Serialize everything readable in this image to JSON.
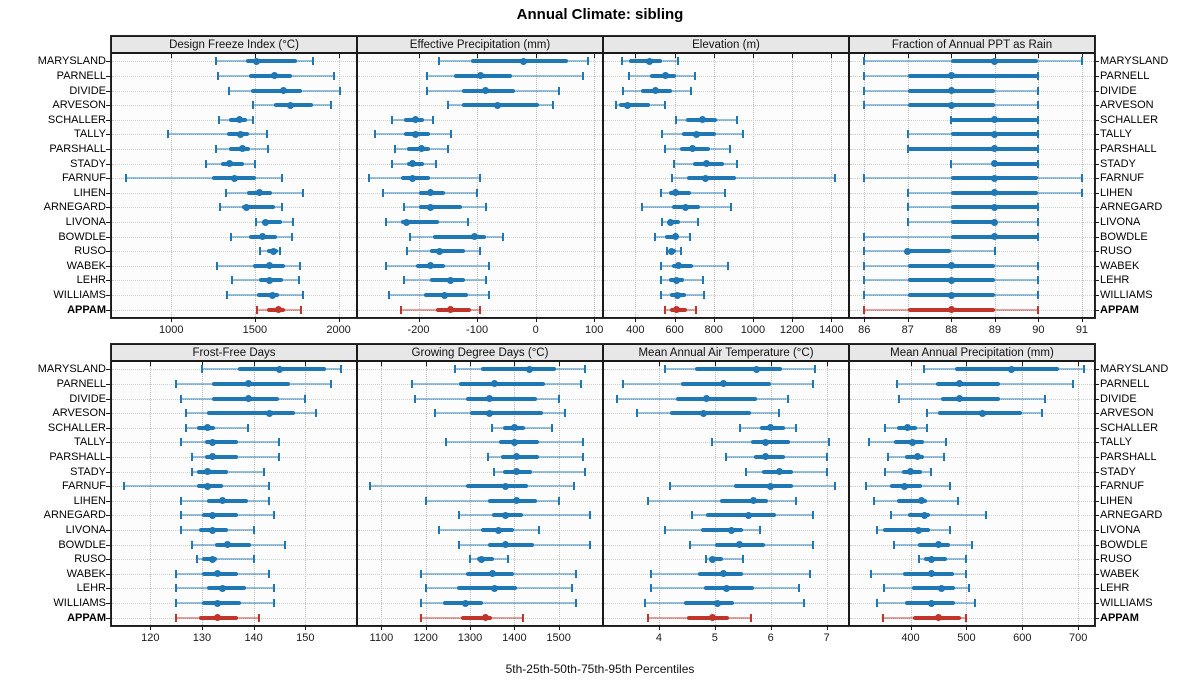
{
  "title": "Annual Climate: sibling",
  "footer": "5th-25th-50th-75th-95th Percentiles",
  "colors": {
    "series_blue": "#1F77B4",
    "series_blue_light": "rgba(31,119,180,0.45)",
    "highlight_red": "#C0352B",
    "highlight_red_light": "rgba(192,53,43,0.45)",
    "header_bg": "#E7E7E7",
    "grid": "#C8C8C8",
    "border": "#1a1a1a"
  },
  "chart_data": {
    "type": "scatter",
    "variant": "trellis dot plot with 5th-25th-50th-75th-95th percentile ranges, 2 rows x 4 columns of panels",
    "legend_position": "none",
    "grid": "dotted",
    "stations": [
      "MARYSLAND",
      "PARNELL",
      "DIVIDE",
      "ARVESON",
      "SCHALLER",
      "TALLY",
      "PARSHALL",
      "STADY",
      "FARNUF",
      "LIHEN",
      "ARNEGARD",
      "LIVONA",
      "BOWDLE",
      "RUSO",
      "WABEK",
      "LEHR",
      "WILLIAMS",
      "APPAM"
    ],
    "highlight_station": "APPAM",
    "percentile_order": [
      "p5",
      "p25",
      "p50",
      "p75",
      "p95"
    ],
    "panels": [
      {
        "title": "Design Freeze Index (°C)",
        "row": 0,
        "col": 0,
        "xlim": [
          640,
          2110
        ],
        "ticks": [
          1000,
          1500,
          2000
        ],
        "values": [
          [
            1265,
            1445,
            1510,
            1750,
            1850
          ],
          [
            1280,
            1465,
            1615,
            1720,
            1975
          ],
          [
            1345,
            1475,
            1670,
            1780,
            2010
          ],
          [
            1490,
            1615,
            1715,
            1850,
            1955
          ],
          [
            1285,
            1345,
            1405,
            1455,
            1490
          ],
          [
            980,
            1335,
            1415,
            1465,
            1570
          ],
          [
            1265,
            1345,
            1425,
            1470,
            1580
          ],
          [
            1210,
            1300,
            1350,
            1435,
            1500
          ],
          [
            730,
            1245,
            1380,
            1505,
            1660
          ],
          [
            1330,
            1455,
            1525,
            1600,
            1790
          ],
          [
            1290,
            1420,
            1450,
            1620,
            1660
          ],
          [
            1505,
            1545,
            1565,
            1660,
            1725
          ],
          [
            1355,
            1465,
            1545,
            1630,
            1720
          ],
          [
            1530,
            1570,
            1610,
            1635,
            1650
          ],
          [
            1275,
            1490,
            1590,
            1680,
            1770
          ],
          [
            1365,
            1525,
            1585,
            1665,
            1765
          ],
          [
            1335,
            1515,
            1605,
            1645,
            1785
          ],
          [
            1510,
            1570,
            1640,
            1680,
            1775
          ]
        ]
      },
      {
        "title": "Effective Precipitation (mm)",
        "row": 0,
        "col": 1,
        "xlim": [
          -305,
          115
        ],
        "ticks": [
          -200,
          -100,
          0,
          100
        ],
        "values": [
          [
            -165,
            -110,
            -20,
            55,
            90
          ],
          [
            -185,
            -140,
            -95,
            -40,
            80
          ],
          [
            -185,
            -125,
            -85,
            -35,
            40
          ],
          [
            -150,
            -125,
            -65,
            5,
            30
          ],
          [
            -245,
            -225,
            -205,
            -190,
            -175
          ],
          [
            -275,
            -225,
            -205,
            -180,
            -145
          ],
          [
            -240,
            -220,
            -195,
            -180,
            -150
          ],
          [
            -245,
            -220,
            -210,
            -190,
            -170
          ],
          [
            -285,
            -230,
            -210,
            -180,
            -95
          ],
          [
            -260,
            -200,
            -180,
            -155,
            -100
          ],
          [
            -225,
            -200,
            -180,
            -125,
            -85
          ],
          [
            -255,
            -230,
            -220,
            -165,
            -115
          ],
          [
            -215,
            -175,
            -105,
            -85,
            -55
          ],
          [
            -220,
            -180,
            -165,
            -120,
            -95
          ],
          [
            -255,
            -205,
            -180,
            -155,
            -80
          ],
          [
            -225,
            -180,
            -145,
            -120,
            -85
          ],
          [
            -250,
            -190,
            -155,
            -115,
            -80
          ],
          [
            -230,
            -170,
            -145,
            -110,
            -95
          ]
        ]
      },
      {
        "title": "Elevation (m)",
        "row": 0,
        "col": 2,
        "xlim": [
          235,
          1490
        ],
        "ticks": [
          400,
          600,
          800,
          1000,
          1200,
          1400
        ],
        "values": [
          [
            330,
            370,
            470,
            535,
            620
          ],
          [
            370,
            475,
            555,
            610,
            705
          ],
          [
            335,
            430,
            505,
            585,
            685
          ],
          [
            300,
            315,
            360,
            475,
            550
          ],
          [
            605,
            660,
            745,
            815,
            920
          ],
          [
            535,
            640,
            710,
            810,
            950
          ],
          [
            550,
            630,
            690,
            780,
            885
          ],
          [
            595,
            695,
            765,
            850,
            920
          ],
          [
            585,
            665,
            760,
            915,
            1420
          ],
          [
            530,
            570,
            605,
            685,
            855
          ],
          [
            435,
            585,
            655,
            730,
            890
          ],
          [
            535,
            570,
            580,
            630,
            720
          ],
          [
            500,
            550,
            605,
            620,
            680
          ],
          [
            560,
            570,
            585,
            610,
            635
          ],
          [
            530,
            585,
            620,
            695,
            875
          ],
          [
            530,
            570,
            610,
            650,
            745
          ],
          [
            530,
            575,
            615,
            660,
            750
          ],
          [
            550,
            575,
            610,
            665,
            710
          ]
        ]
      },
      {
        "title": "Fraction of Annual PPT as Rain",
        "row": 0,
        "col": 3,
        "xlim": [
          85.65,
          91.3
        ],
        "ticks": [
          86,
          87,
          88,
          89,
          90,
          91
        ],
        "values": [
          [
            86,
            88,
            89,
            90,
            91
          ],
          [
            86,
            87,
            88,
            90,
            90
          ],
          [
            86,
            87,
            88,
            89,
            90
          ],
          [
            86,
            87,
            88,
            89,
            90
          ],
          [
            88,
            88,
            89,
            90,
            90
          ],
          [
            87,
            88,
            89,
            90,
            90
          ],
          [
            87,
            87,
            89,
            90,
            90
          ],
          [
            88,
            89,
            89,
            90,
            90
          ],
          [
            86,
            88,
            89,
            90,
            91
          ],
          [
            87,
            88,
            89,
            90,
            91
          ],
          [
            87,
            88,
            89,
            90,
            90
          ],
          [
            87,
            88,
            89,
            89,
            90
          ],
          [
            86,
            88,
            89,
            90,
            90
          ],
          [
            86,
            87,
            87,
            88,
            89
          ],
          [
            86,
            87,
            88,
            89,
            90
          ],
          [
            86,
            87,
            88,
            89,
            90
          ],
          [
            86,
            87,
            88,
            89,
            90
          ],
          [
            86,
            87,
            88,
            89,
            90
          ]
        ]
      },
      {
        "title": "Frost-Free Days",
        "row": 1,
        "col": 0,
        "xlim": [
          112.4,
          160
        ],
        "ticks": [
          120,
          130,
          140,
          150
        ],
        "values": [
          [
            130,
            137,
            145,
            154,
            157
          ],
          [
            125,
            132,
            139,
            147,
            155
          ],
          [
            126,
            132,
            139,
            145,
            150
          ],
          [
            127,
            131,
            143,
            148,
            152
          ],
          [
            127,
            129,
            131,
            132.5,
            139
          ],
          [
            126,
            130.5,
            132,
            137,
            145
          ],
          [
            128,
            130.5,
            132,
            137,
            145
          ],
          [
            128,
            129,
            131,
            135,
            142
          ],
          [
            115,
            129,
            131,
            134,
            143
          ],
          [
            126,
            131,
            134,
            139,
            143
          ],
          [
            126,
            130,
            132,
            137,
            144
          ],
          [
            126,
            129.5,
            132,
            135,
            140
          ],
          [
            128,
            132.5,
            135,
            139.5,
            146
          ],
          [
            129,
            130,
            132,
            133,
            140
          ],
          [
            125,
            130,
            133,
            137,
            143
          ],
          [
            125,
            131,
            134,
            138.5,
            144
          ],
          [
            125,
            130,
            133,
            137.5,
            144
          ],
          [
            125,
            129.5,
            133,
            137,
            141
          ]
        ]
      },
      {
        "title": "Growing Degree Days (°C)",
        "row": 1,
        "col": 1,
        "xlim": [
          1045,
          1600
        ],
        "ticks": [
          1100,
          1200,
          1300,
          1400,
          1500
        ],
        "values": [
          [
            1265,
            1325,
            1435,
            1495,
            1560
          ],
          [
            1170,
            1275,
            1355,
            1470,
            1550
          ],
          [
            1175,
            1290,
            1345,
            1450,
            1500
          ],
          [
            1220,
            1300,
            1345,
            1465,
            1515
          ],
          [
            1350,
            1375,
            1400,
            1425,
            1485
          ],
          [
            1245,
            1365,
            1400,
            1455,
            1555
          ],
          [
            1340,
            1370,
            1405,
            1455,
            1555
          ],
          [
            1355,
            1375,
            1405,
            1440,
            1560
          ],
          [
            1075,
            1290,
            1380,
            1430,
            1535
          ],
          [
            1200,
            1340,
            1405,
            1450,
            1500
          ],
          [
            1275,
            1350,
            1380,
            1420,
            1570
          ],
          [
            1230,
            1325,
            1365,
            1400,
            1455
          ],
          [
            1275,
            1340,
            1380,
            1445,
            1570
          ],
          [
            1300,
            1315,
            1325,
            1355,
            1385
          ],
          [
            1190,
            1290,
            1350,
            1400,
            1540
          ],
          [
            1200,
            1270,
            1355,
            1405,
            1530
          ],
          [
            1190,
            1240,
            1290,
            1330,
            1540
          ],
          [
            1190,
            1280,
            1335,
            1350,
            1420
          ]
        ]
      },
      {
        "title": "Mean Annual Air Temperature (°C)",
        "row": 1,
        "col": 2,
        "xlim": [
          3.0,
          7.4
        ],
        "ticks": [
          4,
          5,
          6,
          7
        ],
        "values": [
          [
            4.1,
            4.65,
            5.75,
            6.2,
            6.8
          ],
          [
            3.35,
            4.4,
            5.15,
            6.0,
            6.75
          ],
          [
            3.25,
            4.3,
            4.85,
            5.75,
            6.3
          ],
          [
            3.6,
            4.2,
            4.8,
            5.65,
            6.15
          ],
          [
            5.45,
            5.8,
            6.0,
            6.25,
            6.45
          ],
          [
            4.95,
            5.65,
            5.9,
            6.35,
            7.05
          ],
          [
            5.2,
            5.7,
            5.9,
            6.25,
            7.0
          ],
          [
            5.55,
            5.85,
            6.15,
            6.4,
            7.0
          ],
          [
            4.2,
            5.35,
            6.0,
            6.4,
            7.15
          ],
          [
            3.8,
            5.1,
            5.7,
            5.95,
            6.45
          ],
          [
            4.6,
            4.85,
            5.6,
            6.1,
            6.75
          ],
          [
            4.1,
            4.75,
            5.3,
            5.5,
            5.8
          ],
          [
            4.55,
            5.0,
            5.45,
            5.9,
            6.75
          ],
          [
            4.85,
            4.9,
            4.95,
            5.15,
            5.5
          ],
          [
            3.85,
            4.7,
            5.15,
            5.5,
            6.7
          ],
          [
            3.85,
            4.8,
            5.2,
            5.7,
            6.5
          ],
          [
            3.75,
            4.45,
            5.05,
            5.35,
            6.6
          ],
          [
            3.8,
            4.5,
            4.95,
            5.25,
            5.65
          ]
        ]
      },
      {
        "title": "Mean Annual Precipitation (mm)",
        "row": 1,
        "col": 3,
        "xlim": [
          290,
          730
        ],
        "ticks": [
          400,
          500,
          600,
          700
        ],
        "values": [
          [
            425,
            480,
            580,
            665,
            710
          ],
          [
            375,
            445,
            487,
            560,
            690
          ],
          [
            380,
            455,
            487,
            560,
            640
          ],
          [
            430,
            450,
            528,
            600,
            635
          ],
          [
            355,
            375,
            394,
            412,
            430
          ],
          [
            325,
            370,
            404,
            425,
            463
          ],
          [
            360,
            390,
            413,
            425,
            460
          ],
          [
            355,
            385,
            400,
            420,
            437
          ],
          [
            320,
            363,
            390,
            420,
            470
          ],
          [
            335,
            375,
            420,
            430,
            485
          ],
          [
            365,
            395,
            425,
            435,
            535
          ],
          [
            340,
            350,
            415,
            435,
            470
          ],
          [
            370,
            413,
            450,
            470,
            510
          ],
          [
            415,
            425,
            437,
            465,
            500
          ],
          [
            330,
            387,
            437,
            477,
            500
          ],
          [
            353,
            403,
            455,
            480,
            505
          ],
          [
            340,
            390,
            437,
            480,
            515
          ],
          [
            350,
            405,
            450,
            490,
            500
          ]
        ]
      }
    ]
  }
}
